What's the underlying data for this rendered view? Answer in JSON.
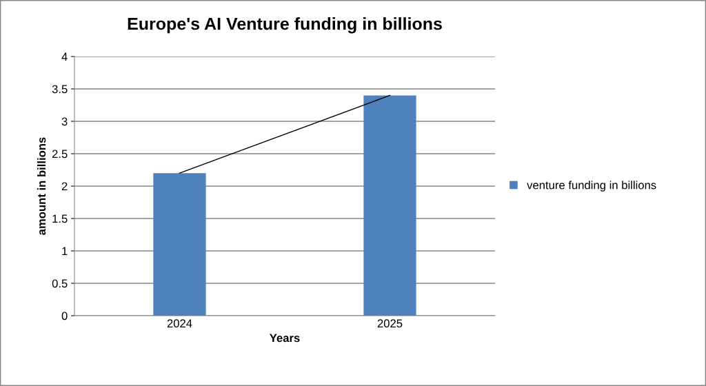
{
  "chart_data": {
    "type": "bar",
    "title": "Europe's AI Venture funding in billions",
    "xlabel": "Years",
    "ylabel": "amount in billions",
    "categories": [
      "2024",
      "2025"
    ],
    "series": [
      {
        "name": "venture funding in billions",
        "color": "#4f81bd",
        "values": [
          2.2,
          3.4
        ]
      },
      {
        "type": "line",
        "color": "#000000",
        "values": [
          2.2,
          3.4
        ]
      }
    ],
    "ylim": [
      0,
      4
    ],
    "yticks": [
      0,
      0.5,
      1,
      1.5,
      2,
      2.5,
      3,
      3.5,
      4
    ],
    "grid": "y",
    "legend": "right"
  }
}
